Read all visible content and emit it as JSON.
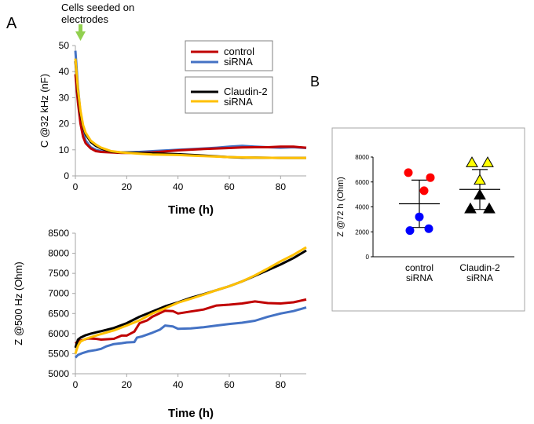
{
  "panel_labels": {
    "a": "A",
    "b": "B"
  },
  "annotation": {
    "line1": "Cells seeded on",
    "line2": "electrodes",
    "arrow_color": "#92d050"
  },
  "chart_data": [
    {
      "id": "capacitance",
      "type": "line",
      "title": "",
      "xlabel": "Time (h)",
      "ylabel": "C @32 kHz (nF)",
      "xlim": [
        0,
        90
      ],
      "ylim": [
        0,
        50
      ],
      "xticks": [
        0,
        20,
        40,
        60,
        80
      ],
      "yticks": [
        0,
        10,
        20,
        30,
        40,
        50
      ],
      "grid": false,
      "legend": [
        {
          "label": "control\nsiRNA",
          "series": [
            "control siRNA",
            "siRNA (control)"
          ]
        },
        {
          "label": "Claudin-2\nsiRNA",
          "series": [
            "Claudin-2",
            "siRNA (Claudin-2)"
          ]
        }
      ],
      "legend_boxes": [
        {
          "entries": [
            {
              "label": "control",
              "color": "#c00000"
            },
            {
              "label": "siRNA",
              "color": "#4472c4"
            }
          ]
        },
        {
          "entries": [
            {
              "label": "Claudin-2",
              "color": "#000000"
            },
            {
              "label": "siRNA",
              "color": "#ffc000"
            }
          ]
        }
      ],
      "series": [
        {
          "color": "#4472c4",
          "x": [
            0,
            1,
            2,
            3,
            4,
            6,
            8,
            10,
            14,
            18,
            25,
            30,
            40,
            50,
            55,
            60,
            65,
            70,
            75,
            80,
            85,
            90
          ],
          "y": [
            48,
            34,
            24,
            17,
            13.5,
            11,
            10,
            9.5,
            9.2,
            9,
            9.2,
            9.5,
            10,
            10.5,
            10.8,
            11.2,
            11.5,
            11.2,
            11,
            10.8,
            11,
            10.7
          ]
        },
        {
          "color": "#c00000",
          "x": [
            0,
            1,
            2,
            3,
            4,
            6,
            8,
            10,
            14,
            18,
            25,
            30,
            40,
            50,
            55,
            60,
            65,
            70,
            75,
            80,
            85,
            90
          ],
          "y": [
            39,
            28,
            20,
            15,
            12.5,
            10.5,
            9.5,
            9.2,
            9,
            8.8,
            8.8,
            9,
            9.8,
            10.3,
            10.5,
            10.7,
            10.9,
            11,
            11,
            11.2,
            11.2,
            10.8
          ]
        },
        {
          "color": "#000000",
          "x": [
            0,
            1,
            2,
            3,
            4,
            6,
            8,
            10,
            14,
            18,
            25,
            30,
            40,
            50,
            60,
            65,
            70,
            80,
            90
          ],
          "y": [
            44,
            32,
            24,
            19,
            16,
            13,
            11.5,
            10.5,
            9.3,
            9,
            8.8,
            8.6,
            8.3,
            7.8,
            7.2,
            7,
            7,
            6.9,
            6.9
          ]
        },
        {
          "color": "#ffc000",
          "x": [
            0,
            1,
            2,
            3,
            4,
            6,
            8,
            10,
            14,
            18,
            25,
            30,
            40,
            50,
            60,
            65,
            70,
            80,
            90
          ],
          "y": [
            45,
            33,
            25,
            19.5,
            16.5,
            13.5,
            12,
            10.8,
            9.5,
            9,
            8.5,
            8.2,
            8,
            7.6,
            7.2,
            7.1,
            7,
            6.9,
            6.9
          ]
        }
      ]
    },
    {
      "id": "impedance",
      "type": "line",
      "title": "",
      "xlabel": "Time (h)",
      "ylabel": "Z @500 Hz (Ohm)",
      "xlim": [
        0,
        90
      ],
      "ylim": [
        5000,
        8500
      ],
      "xticks": [
        0,
        20,
        40,
        60,
        80
      ],
      "yticks": [
        5000,
        5500,
        6000,
        6500,
        7000,
        7500,
        8000,
        8500
      ],
      "grid": false,
      "series": [
        {
          "color": "#4472c4",
          "x": [
            0,
            1,
            3,
            5,
            8,
            10,
            12,
            15,
            18,
            20,
            23,
            24,
            26,
            30,
            33,
            35,
            38,
            40,
            45,
            50,
            55,
            60,
            65,
            70,
            75,
            80,
            85,
            90
          ],
          "y": [
            5400,
            5470,
            5520,
            5560,
            5590,
            5620,
            5680,
            5740,
            5760,
            5780,
            5790,
            5900,
            5930,
            6020,
            6100,
            6200,
            6180,
            6120,
            6130,
            6160,
            6200,
            6240,
            6270,
            6320,
            6420,
            6500,
            6560,
            6650
          ]
        },
        {
          "color": "#c00000",
          "x": [
            0,
            1,
            3,
            5,
            8,
            10,
            15,
            18,
            20,
            23,
            25,
            28,
            30,
            35,
            38,
            40,
            45,
            50,
            55,
            60,
            65,
            70,
            75,
            80,
            85,
            90
          ],
          "y": [
            5750,
            5810,
            5840,
            5880,
            5870,
            5850,
            5870,
            5950,
            5950,
            6050,
            6260,
            6330,
            6420,
            6570,
            6560,
            6500,
            6550,
            6600,
            6700,
            6720,
            6750,
            6800,
            6760,
            6750,
            6780,
            6850
          ]
        },
        {
          "color": "#000000",
          "x": [
            0,
            1,
            2,
            4,
            6,
            8,
            10,
            15,
            20,
            25,
            30,
            35,
            40,
            45,
            50,
            55,
            60,
            65,
            70,
            75,
            80,
            85,
            90
          ],
          "y": [
            5650,
            5850,
            5900,
            5960,
            6000,
            6030,
            6060,
            6140,
            6260,
            6420,
            6550,
            6680,
            6780,
            6890,
            6980,
            7080,
            7180,
            7300,
            7440,
            7580,
            7720,
            7880,
            8070
          ]
        },
        {
          "color": "#ffc000",
          "x": [
            0,
            1,
            2,
            4,
            6,
            8,
            10,
            15,
            20,
            25,
            30,
            35,
            40,
            45,
            50,
            55,
            60,
            65,
            70,
            75,
            80,
            85,
            90
          ],
          "y": [
            5500,
            5700,
            5800,
            5870,
            5910,
            5950,
            5990,
            6080,
            6200,
            6330,
            6500,
            6630,
            6770,
            6870,
            6970,
            7080,
            7180,
            7300,
            7450,
            7620,
            7800,
            7960,
            8150
          ]
        }
      ]
    },
    {
      "id": "scatter-b",
      "type": "scatter",
      "title": "",
      "xlabel": "",
      "ylabel": "Z @72 h (Ohm)",
      "ylim": [
        0,
        8000
      ],
      "yticks": [
        0,
        2000,
        4000,
        6000,
        8000
      ],
      "categories": [
        "control\nsiRNA",
        "Claudin-2\nsiRNA"
      ],
      "groups": [
        {
          "category_index": 0,
          "mean": 4250,
          "sd_low": 2350,
          "sd_high": 6150,
          "points": [
            {
              "y": 6750,
              "color": "#ff0000",
              "shape": "circle"
            },
            {
              "y": 6350,
              "color": "#ff0000",
              "shape": "circle"
            },
            {
              "y": 5300,
              "color": "#ff0000",
              "shape": "circle"
            },
            {
              "y": 3200,
              "color": "#0000ff",
              "shape": "circle"
            },
            {
              "y": 2100,
              "color": "#0000ff",
              "shape": "circle"
            },
            {
              "y": 2250,
              "color": "#0000ff",
              "shape": "circle"
            }
          ]
        },
        {
          "category_index": 1,
          "mean": 5400,
          "sd_low": 3800,
          "sd_high": 7000,
          "points": [
            {
              "y": 7550,
              "color": "#ffff00",
              "shape": "triangle"
            },
            {
              "y": 7550,
              "color": "#ffff00",
              "shape": "triangle"
            },
            {
              "y": 6150,
              "color": "#ffff00",
              "shape": "triangle"
            },
            {
              "y": 4950,
              "color": "#000000",
              "shape": "triangle"
            },
            {
              "y": 3850,
              "color": "#000000",
              "shape": "triangle"
            },
            {
              "y": 3850,
              "color": "#000000",
              "shape": "triangle"
            }
          ]
        }
      ]
    }
  ]
}
